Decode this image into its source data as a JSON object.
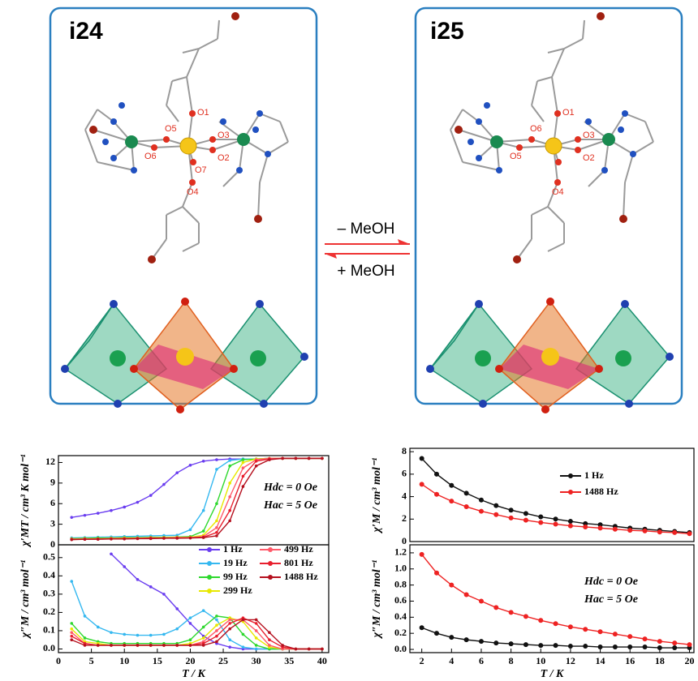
{
  "figure": {
    "panels": [
      "i24",
      "i25"
    ],
    "arrow_top": "– MeOH",
    "arrow_bottom": "+ MeOH",
    "atoms_i24": [
      "O1",
      "O5",
      "O3",
      "O6",
      "O2",
      "O7",
      "O4"
    ],
    "atoms_i25": [
      "O1",
      "O6",
      "O3",
      "O5",
      "O2",
      "O4"
    ]
  },
  "chart_data": [
    {
      "type": "line",
      "y_label": "χ′MT / cm³ K mol⁻¹",
      "annotations": [
        "Hdc = 0 Oe",
        "Hac = 5 Oe"
      ],
      "x": [
        2,
        4,
        6,
        8,
        10,
        12,
        14,
        16,
        18,
        20,
        22,
        24,
        26,
        28,
        30,
        32,
        34,
        36,
        38,
        40
      ],
      "xlim": [
        0,
        41
      ],
      "ylim": [
        0,
        13
      ],
      "yticks": [
        0,
        3,
        6,
        9,
        12
      ],
      "series": [
        {
          "color": "#6a3df0",
          "values": [
            4.0,
            4.3,
            4.6,
            5.0,
            5.5,
            6.2,
            7.2,
            8.8,
            10.5,
            11.6,
            12.2,
            12.4,
            12.5,
            12.5,
            12.5,
            12.6,
            12.6,
            12.6,
            12.6,
            12.6
          ]
        },
        {
          "color": "#35b8f0",
          "values": [
            1.0,
            1.05,
            1.1,
            1.15,
            1.2,
            1.25,
            1.3,
            1.35,
            1.4,
            2.2,
            5.0,
            11.0,
            12.3,
            12.5,
            12.5,
            12.6,
            12.6,
            12.6,
            12.6,
            12.6
          ]
        },
        {
          "color": "#2ed82e",
          "values": [
            0.9,
            0.95,
            1.0,
            1.0,
            1.05,
            1.05,
            1.1,
            1.1,
            1.15,
            1.2,
            2.0,
            6.0,
            11.5,
            12.4,
            12.5,
            12.6,
            12.6,
            12.6,
            12.6,
            12.6
          ]
        },
        {
          "color": "#e8e800",
          "values": [
            0.85,
            0.9,
            0.9,
            0.95,
            1.0,
            1.0,
            1.05,
            1.05,
            1.1,
            1.1,
            1.4,
            3.5,
            9.0,
            12.0,
            12.5,
            12.6,
            12.6,
            12.6,
            12.6,
            12.6
          ]
        },
        {
          "color": "#ff5a6a",
          "values": [
            0.8,
            0.85,
            0.85,
            0.9,
            0.9,
            0.95,
            1.0,
            1.0,
            1.05,
            1.05,
            1.2,
            2.5,
            7.0,
            11.2,
            12.4,
            12.6,
            12.6,
            12.6,
            12.6,
            12.6
          ]
        },
        {
          "color": "#e8202e",
          "values": [
            0.8,
            0.8,
            0.85,
            0.85,
            0.9,
            0.9,
            0.95,
            0.95,
            1.0,
            1.0,
            1.1,
            1.8,
            5.0,
            10.0,
            12.2,
            12.5,
            12.6,
            12.6,
            12.6,
            12.6
          ]
        },
        {
          "color": "#b5101e",
          "values": [
            0.75,
            0.8,
            0.8,
            0.85,
            0.85,
            0.9,
            0.9,
            0.95,
            0.95,
            1.0,
            1.05,
            1.3,
            3.5,
            8.5,
            11.5,
            12.4,
            12.6,
            12.6,
            12.6,
            12.6
          ]
        }
      ]
    },
    {
      "type": "line",
      "y_label": "χ″M / cm³ mol⁻¹",
      "x_label": "T / K",
      "x": [
        2,
        4,
        6,
        8,
        10,
        12,
        14,
        16,
        18,
        20,
        22,
        24,
        26,
        28,
        30,
        32,
        34,
        36,
        38,
        40
      ],
      "xlim": [
        0,
        41
      ],
      "xticks": [
        0,
        5,
        10,
        15,
        20,
        25,
        30,
        35,
        40
      ],
      "ylim": [
        -0.02,
        0.57
      ],
      "yticks": [
        {
          "value": 0,
          "label": "0.0"
        },
        0.1,
        0.2,
        0.3,
        0.4,
        0.5
      ],
      "series": [
        {
          "name": "1 Hz",
          "color": "#6a3df0",
          "values": [
            null,
            null,
            null,
            0.52,
            0.45,
            0.38,
            0.34,
            0.3,
            0.22,
            0.14,
            0.07,
            0.03,
            0.01,
            0,
            0,
            0,
            0,
            0,
            0,
            0
          ]
        },
        {
          "name": "19 Hz",
          "color": "#35b8f0",
          "values": [
            0.37,
            0.18,
            0.12,
            0.09,
            0.08,
            0.075,
            0.075,
            0.08,
            0.11,
            0.17,
            0.21,
            0.16,
            0.05,
            0.01,
            0,
            0,
            0,
            0,
            0,
            0
          ]
        },
        {
          "name": "99 Hz",
          "color": "#2ed82e",
          "values": [
            0.14,
            0.06,
            0.04,
            0.03,
            0.03,
            0.03,
            0.03,
            0.03,
            0.03,
            0.05,
            0.12,
            0.18,
            0.17,
            0.08,
            0.02,
            0,
            0,
            0,
            0,
            0
          ]
        },
        {
          "name": "299 Hz",
          "color": "#e8e800",
          "values": [
            0.11,
            0.04,
            0.03,
            0.02,
            0.02,
            0.02,
            0.02,
            0.02,
            0.02,
            0.03,
            0.06,
            0.13,
            0.17,
            0.15,
            0.06,
            0.01,
            0,
            0,
            0,
            0
          ]
        },
        {
          "name": "499 Hz",
          "color": "#ff5a6a",
          "values": [
            0.09,
            0.03,
            0.02,
            0.02,
            0.02,
            0.02,
            0.02,
            0.02,
            0.02,
            0.02,
            0.04,
            0.1,
            0.16,
            0.16,
            0.1,
            0.02,
            0,
            0,
            0,
            0
          ]
        },
        {
          "name": "801 Hz",
          "color": "#e8202e",
          "values": [
            0.07,
            0.03,
            0.02,
            0.02,
            0.02,
            0.02,
            0.02,
            0.02,
            0.02,
            0.02,
            0.03,
            0.07,
            0.14,
            0.17,
            0.14,
            0.05,
            0.01,
            0,
            0,
            0
          ]
        },
        {
          "name": "1488 Hz",
          "color": "#b5101e",
          "values": [
            0.05,
            0.02,
            0.02,
            0.02,
            0.02,
            0.02,
            0.02,
            0.02,
            0.02,
            0.02,
            0.02,
            0.04,
            0.11,
            0.16,
            0.16,
            0.09,
            0.02,
            0,
            0,
            0
          ]
        }
      ]
    },
    {
      "type": "line",
      "y_label": "χ′M / cm³ mol⁻¹",
      "x": [
        2,
        3,
        4,
        5,
        6,
        7,
        8,
        9,
        10,
        11,
        12,
        13,
        14,
        15,
        16,
        17,
        18,
        19,
        20
      ],
      "xlim": [
        1.2,
        20.3
      ],
      "ylim": [
        0,
        8.3
      ],
      "yticks": [
        0,
        2,
        4,
        6,
        8
      ],
      "series": [
        {
          "name": "1 Hz",
          "color": "#111111",
          "values": [
            7.4,
            6.0,
            5.0,
            4.3,
            3.7,
            3.2,
            2.8,
            2.5,
            2.2,
            2.0,
            1.8,
            1.6,
            1.5,
            1.35,
            1.2,
            1.1,
            1.0,
            0.9,
            0.8
          ]
        },
        {
          "name": "1488 Hz",
          "color": "#ee2222",
          "values": [
            5.1,
            4.2,
            3.6,
            3.1,
            2.7,
            2.4,
            2.1,
            1.9,
            1.7,
            1.55,
            1.4,
            1.3,
            1.2,
            1.1,
            1.0,
            0.95,
            0.85,
            0.8,
            0.7
          ]
        }
      ]
    },
    {
      "type": "line",
      "y_label": "χ″M / cm³ mol⁻¹",
      "x_label": "T / K",
      "annotations": [
        "Hdc = 0 Oe",
        "Hac = 5 Oe"
      ],
      "x": [
        2,
        3,
        4,
        5,
        6,
        7,
        8,
        9,
        10,
        11,
        12,
        13,
        14,
        15,
        16,
        17,
        18,
        19,
        20
      ],
      "xlim": [
        1.2,
        20.3
      ],
      "xticks": [
        2,
        4,
        6,
        8,
        10,
        12,
        14,
        16,
        18,
        20
      ],
      "ylim": [
        -0.04,
        1.3
      ],
      "yticks": [
        {
          "value": 0,
          "label": "0.0"
        },
        0.2,
        0.4,
        0.6,
        0.8,
        {
          "value": 1,
          "label": "1.0"
        },
        1.2
      ],
      "series": [
        {
          "color": "#111111",
          "values": [
            0.27,
            0.2,
            0.15,
            0.12,
            0.1,
            0.08,
            0.07,
            0.06,
            0.05,
            0.05,
            0.04,
            0.04,
            0.03,
            0.03,
            0.03,
            0.03,
            0.02,
            0.02,
            0.02
          ]
        },
        {
          "color": "#ee2222",
          "values": [
            1.18,
            0.95,
            0.8,
            0.68,
            0.6,
            0.52,
            0.46,
            0.41,
            0.36,
            0.32,
            0.28,
            0.25,
            0.22,
            0.19,
            0.16,
            0.13,
            0.1,
            0.08,
            0.06
          ]
        }
      ]
    }
  ]
}
